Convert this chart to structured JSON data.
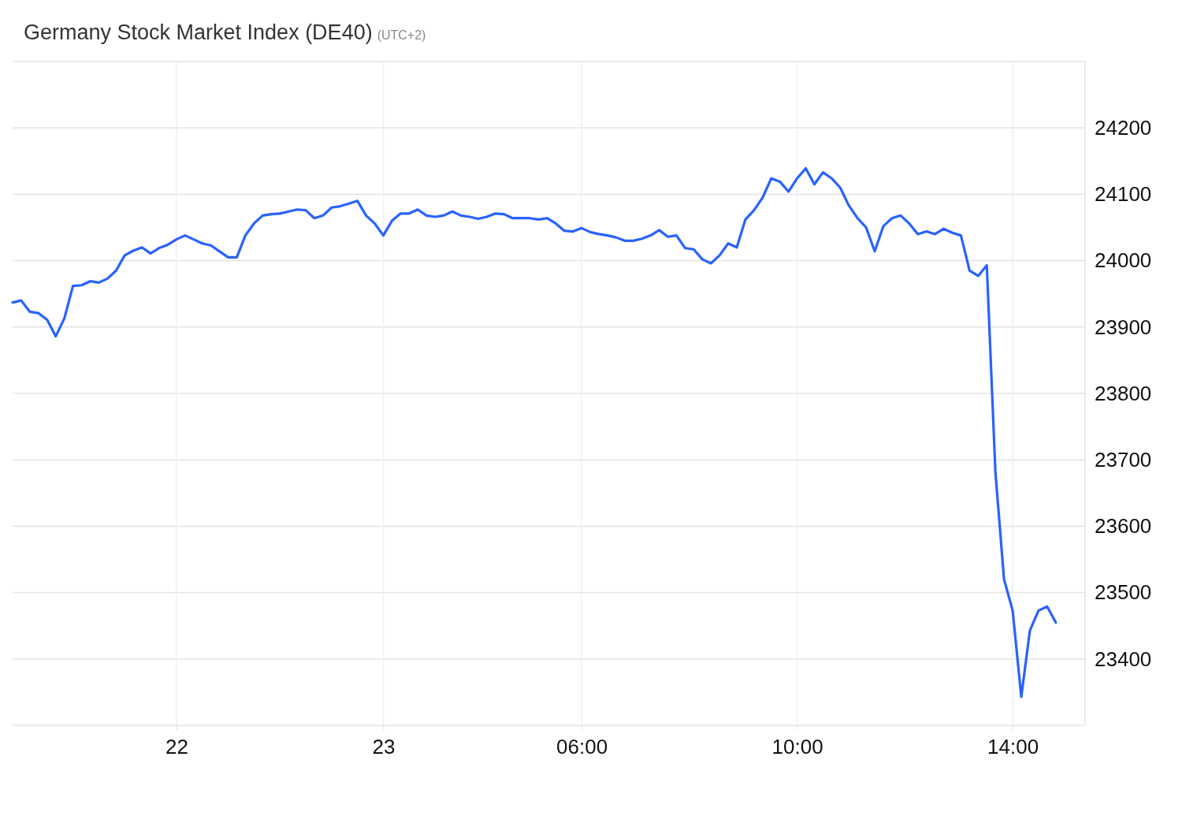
{
  "chart_data": {
    "type": "line",
    "title": "Germany Stock Market Index (DE40)",
    "subtitle": "(UTC+2)",
    "categories": [
      null,
      null,
      null,
      null,
      null,
      null,
      null,
      null,
      null,
      null,
      null,
      null,
      null,
      null,
      null,
      null,
      null,
      null,
      null,
      "22",
      null,
      null,
      null,
      null,
      null,
      null,
      null,
      null,
      null,
      null,
      null,
      null,
      null,
      null,
      null,
      null,
      null,
      null,
      null,
      null,
      null,
      null,
      null,
      "23",
      null,
      null,
      null,
      null,
      null,
      null,
      null,
      null,
      null,
      null,
      null,
      null,
      null,
      null,
      null,
      null,
      null,
      null,
      null,
      null,
      null,
      null,
      "06:00",
      null,
      null,
      null,
      null,
      null,
      null,
      null,
      null,
      null,
      null,
      null,
      null,
      null,
      null,
      null,
      null,
      null,
      null,
      null,
      null,
      null,
      null,
      null,
      null,
      "10:00",
      null,
      null,
      null,
      null,
      null,
      null,
      null,
      null,
      null,
      null,
      null,
      null,
      null,
      null,
      null,
      null,
      null,
      null,
      null,
      null,
      null,
      null,
      null,
      null,
      "14:00",
      null,
      null,
      null,
      null,
      null
    ],
    "series": [
      {
        "color": "#2962ff",
        "values": [
          23937,
          23940,
          23923,
          23921,
          23911,
          23886,
          23913,
          23962,
          23963,
          23969,
          23967,
          23973,
          23985,
          24008,
          24015,
          24020,
          24011,
          24019,
          24024,
          24032,
          24038,
          24032,
          24026,
          24023,
          24014,
          24005,
          24005,
          24038,
          24056,
          24068,
          24070,
          24071,
          24074,
          24077,
          24076,
          24064,
          24068,
          24080,
          24082,
          24086,
          24090,
          24068,
          24056,
          24038,
          24060,
          24071,
          24071,
          24077,
          24068,
          24066,
          24068,
          24074,
          24068,
          24066,
          24063,
          24066,
          24071,
          24070,
          24064,
          24064,
          24064,
          24062,
          24064,
          24056,
          24045,
          24044,
          24049,
          24043,
          24040,
          24038,
          24035,
          24030,
          24030,
          24033,
          24038,
          24046,
          24036,
          24038,
          24019,
          24017,
          24002,
          23996,
          24008,
          24026,
          24020,
          24062,
          24076,
          24095,
          24124,
          24119,
          24104,
          24124,
          24139,
          24115,
          24133,
          24124,
          24110,
          24083,
          24064,
          24050,
          24014,
          24052,
          24064,
          24068,
          24056,
          24040,
          24044,
          24040,
          24048,
          24042,
          24038,
          23985,
          23977,
          23993,
          23681,
          23520,
          23473,
          23343,
          23443,
          23473,
          23479,
          23455
        ]
      }
    ],
    "ylim": [
      23300,
      24300
    ],
    "yticks": [
      23400,
      23500,
      23600,
      23700,
      23800,
      23900,
      24000,
      24100,
      24200
    ],
    "grid": true
  }
}
